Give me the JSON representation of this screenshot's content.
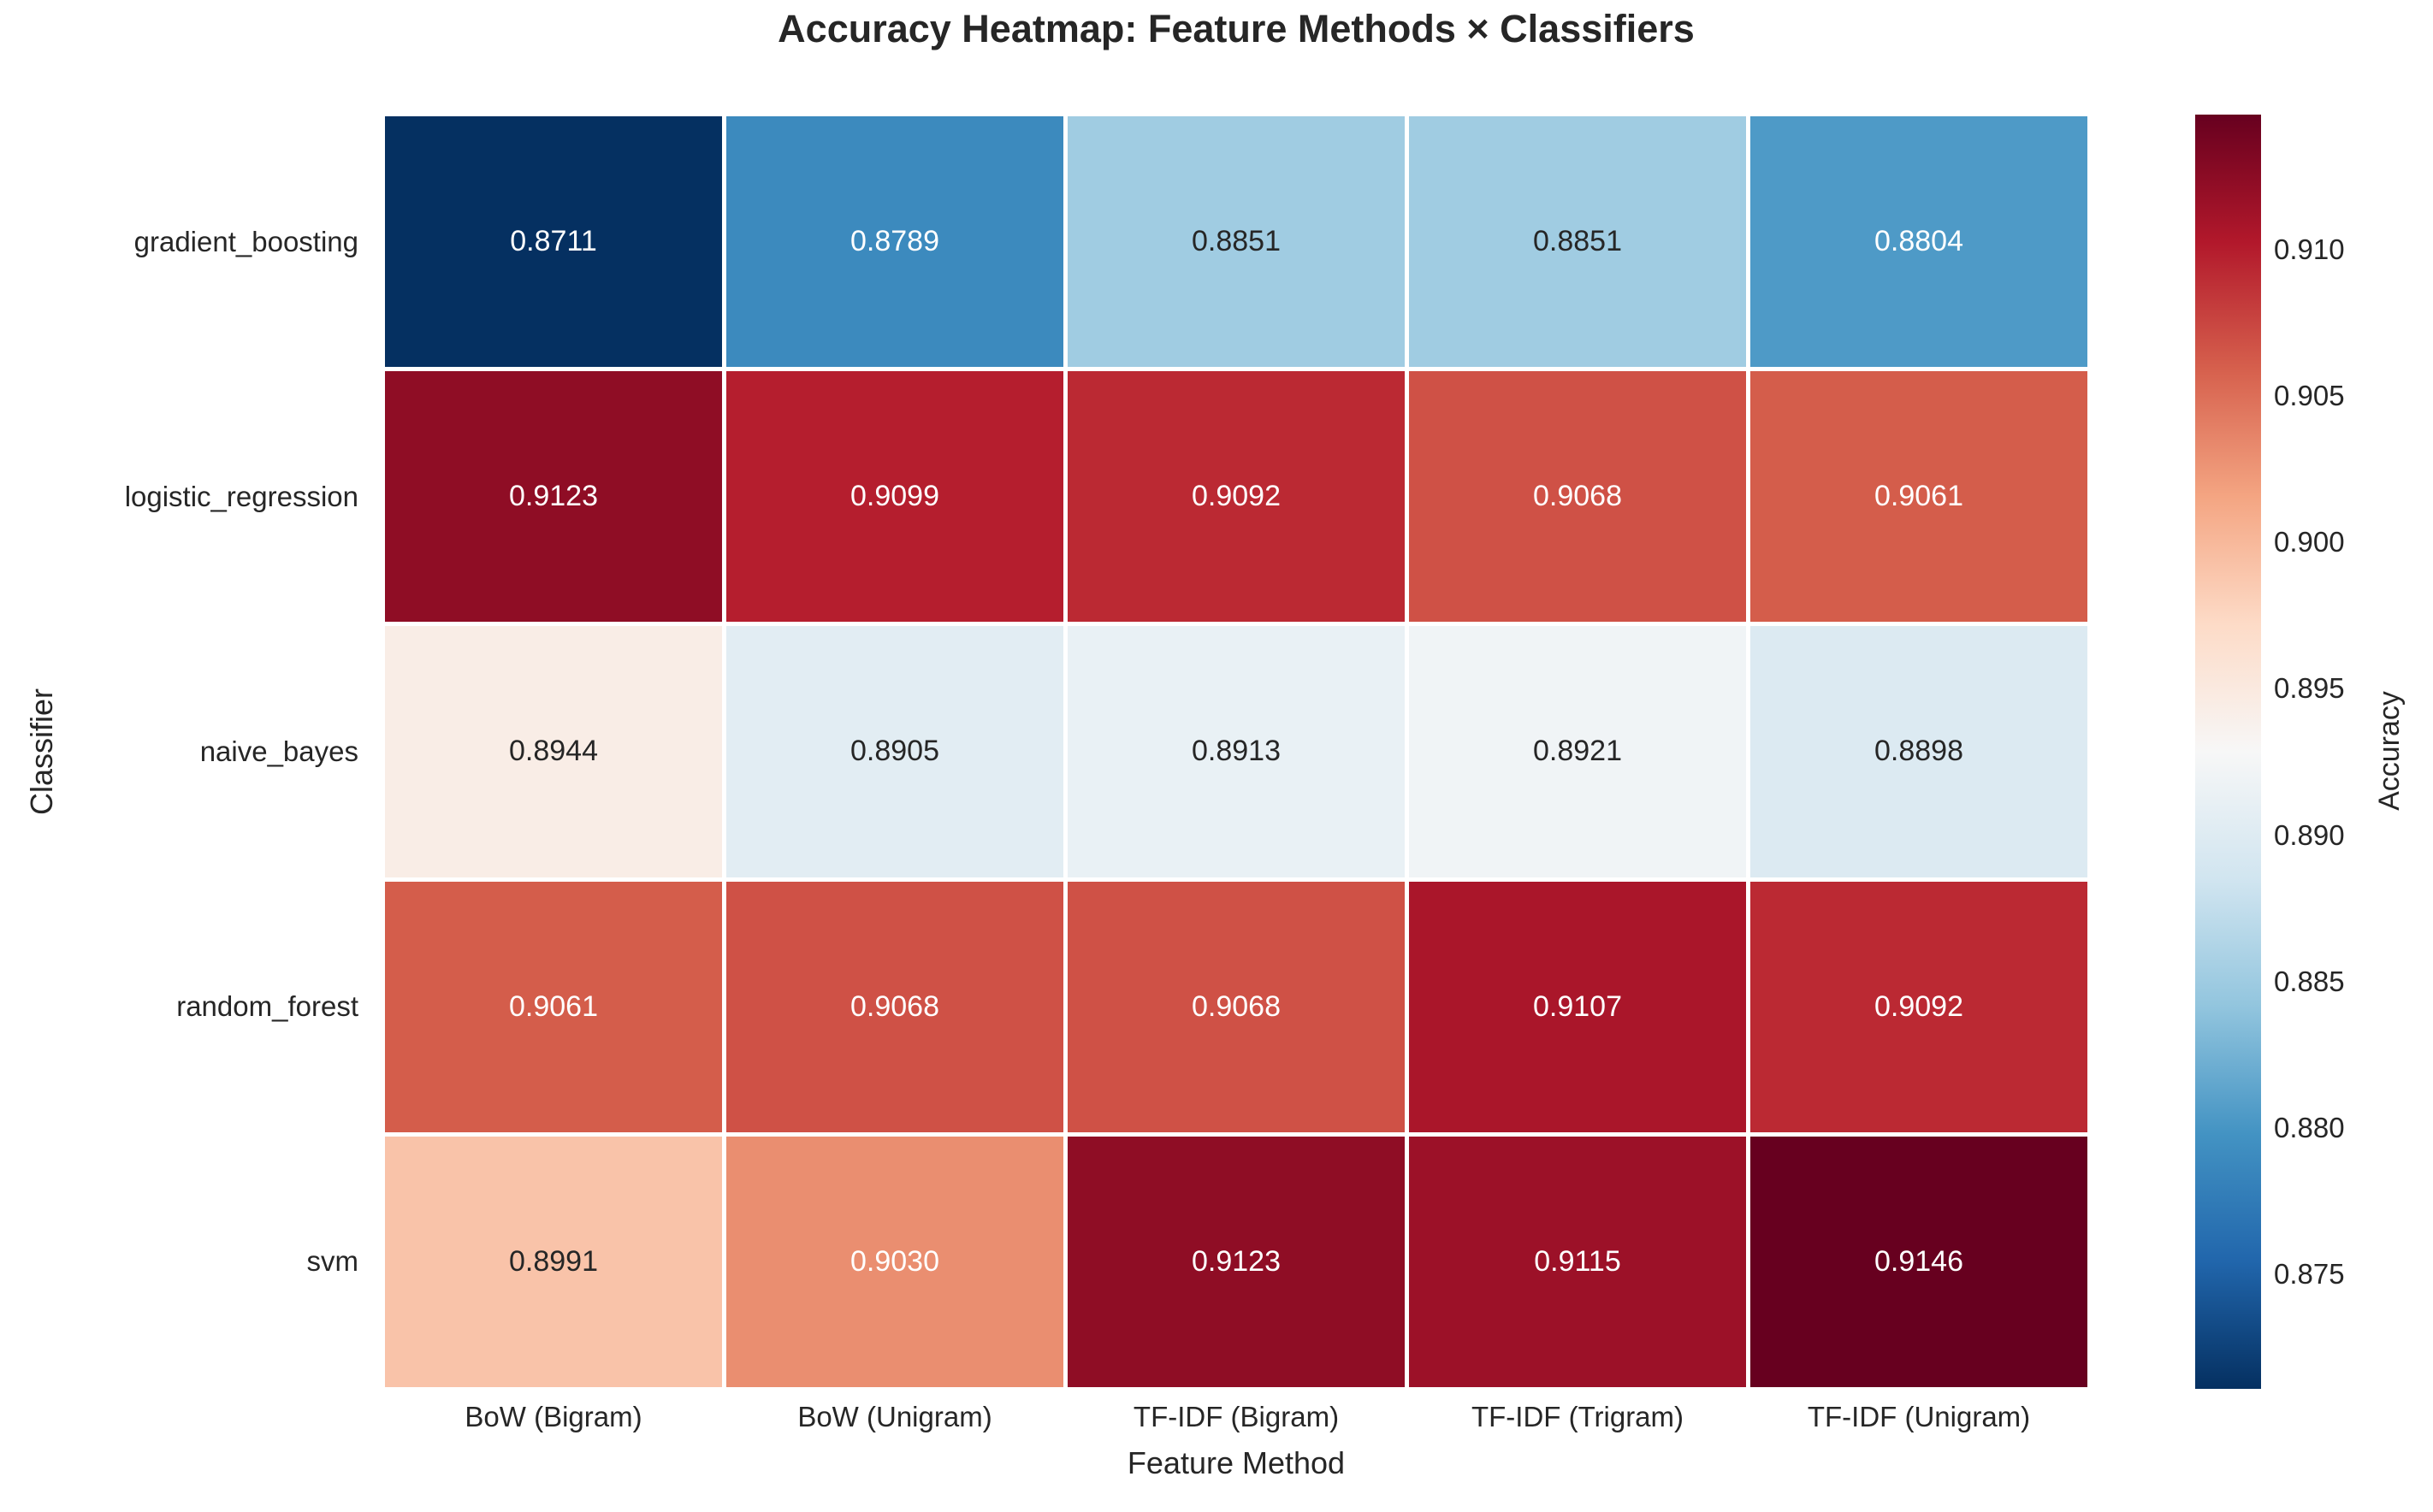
{
  "chart_data": {
    "type": "heatmap",
    "title": "Accuracy Heatmap: Feature Methods × Classifiers",
    "xlabel": "Feature Method",
    "ylabel": "Classifier",
    "colorbar_label": "Accuracy",
    "x_categories": [
      "BoW (Bigram)",
      "BoW (Unigram)",
      "TF-IDF (Bigram)",
      "TF-IDF (Trigram)",
      "TF-IDF (Unigram)"
    ],
    "y_categories": [
      "gradient_boosting",
      "logistic_regression",
      "naive_bayes",
      "random_forest",
      "svm"
    ],
    "values": [
      [
        0.8711,
        0.8789,
        0.8851,
        0.8851,
        0.8804
      ],
      [
        0.9123,
        0.9099,
        0.9092,
        0.9068,
        0.9061
      ],
      [
        0.8944,
        0.8905,
        0.8913,
        0.8921,
        0.8898
      ],
      [
        0.9061,
        0.9068,
        0.9068,
        0.9107,
        0.9092
      ],
      [
        0.8991,
        0.903,
        0.9123,
        0.9115,
        0.9146
      ]
    ],
    "value_format_decimals": 4,
    "vmin": 0.8711,
    "vmax": 0.9146,
    "colormap": "RdBu_r",
    "colormap_anchors_low_to_high": [
      "#053061",
      "#2166ac",
      "#4393c3",
      "#92c5de",
      "#d1e5f0",
      "#f7f7f7",
      "#fddbc7",
      "#f4a582",
      "#d6604d",
      "#b2182b",
      "#67001f"
    ],
    "annotation_text_dark": "#262626",
    "annotation_text_light": "#ffffff",
    "colorbar_ticks": {
      "labels": [
        "0.910",
        "0.905",
        "0.900",
        "0.895",
        "0.890",
        "0.885",
        "0.880",
        "0.875"
      ],
      "values": [
        0.91,
        0.905,
        0.9,
        0.895,
        0.89,
        0.885,
        0.88,
        0.875
      ]
    },
    "grid_lines": "white",
    "legend_position": "right-colorbar",
    "background": "#ffffff"
  }
}
